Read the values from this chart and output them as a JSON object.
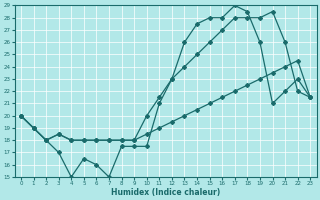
{
  "xlabel": "Humidex (Indice chaleur)",
  "background_color": "#b2e8e8",
  "grid_color": "#ffffff",
  "line_color": "#1a6b6b",
  "xlim": [
    -0.5,
    23.5
  ],
  "ylim": [
    15,
    29
  ],
  "yticks": [
    15,
    16,
    17,
    18,
    19,
    20,
    21,
    22,
    23,
    24,
    25,
    26,
    27,
    28,
    29
  ],
  "xticks": [
    0,
    1,
    2,
    3,
    4,
    5,
    6,
    7,
    8,
    9,
    10,
    11,
    12,
    13,
    14,
    15,
    16,
    17,
    18,
    19,
    20,
    21,
    22,
    23
  ],
  "line1_x": [
    0,
    1,
    2,
    3,
    4,
    5,
    6,
    7,
    8,
    9,
    10,
    11,
    12,
    13,
    14,
    15,
    16,
    17,
    18,
    19,
    20,
    21,
    22,
    23
  ],
  "line1_y": [
    20,
    19,
    18,
    17,
    15,
    16.5,
    16,
    15,
    17.5,
    17.5,
    17.5,
    21,
    23,
    26,
    27.5,
    28,
    28,
    29,
    28.5,
    26,
    21,
    22,
    23,
    21.5
  ],
  "line2_x": [
    0,
    1,
    2,
    3,
    4,
    5,
    6,
    7,
    8,
    9,
    10,
    11,
    12,
    13,
    14,
    15,
    16,
    17,
    18,
    19,
    20,
    21,
    22,
    23
  ],
  "line2_y": [
    20,
    19,
    18,
    18.5,
    18,
    18,
    18,
    18,
    18,
    18,
    20,
    21.5,
    23,
    24,
    25,
    26,
    27,
    28,
    28,
    28,
    28.5,
    26,
    22,
    21.5
  ],
  "line3_x": [
    0,
    1,
    2,
    3,
    4,
    5,
    6,
    7,
    8,
    9,
    10,
    11,
    12,
    13,
    14,
    15,
    16,
    17,
    18,
    19,
    20,
    21,
    22,
    23
  ],
  "line3_y": [
    20,
    19,
    18,
    18.5,
    18,
    18,
    18,
    18,
    18,
    18,
    18.5,
    19,
    19.5,
    20,
    20.5,
    21,
    21.5,
    22,
    22.5,
    23,
    23.5,
    24,
    24.5,
    21.5
  ]
}
